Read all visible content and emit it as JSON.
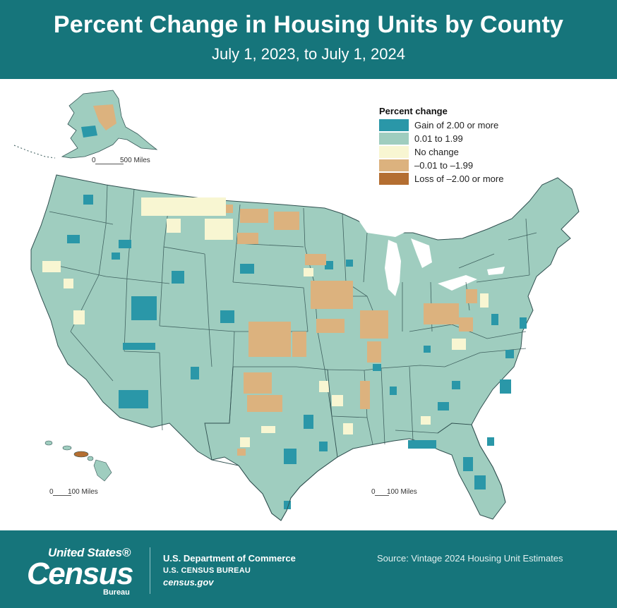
{
  "header": {
    "title": "Percent Change in Housing Units by County",
    "subtitle": "July 1, 2023, to July 1, 2024"
  },
  "legend": {
    "title": "Percent change",
    "items": [
      {
        "label": "Gain of 2.00 or more",
        "color": "#2a97a8"
      },
      {
        "label": "0.01 to 1.99",
        "color": "#9fcdbf"
      },
      {
        "label": "No change",
        "color": "#f8f6d2"
      },
      {
        "label": "–0.01 to –1.99",
        "color": "#dcb27e"
      },
      {
        "label": "Loss of –2.00 or more",
        "color": "#b46e31"
      }
    ]
  },
  "scales": {
    "alaska": {
      "zero": "0",
      "label": "500 Miles"
    },
    "hawaii": {
      "zero": "0",
      "label": "100 Miles"
    },
    "conus": {
      "zero": "0",
      "label": "100 Miles"
    }
  },
  "footer": {
    "logo_line1": "United States®",
    "logo_line2": "Census",
    "logo_line3": "Bureau",
    "department": "U.S. Department of Commerce",
    "bureau": "U.S. CENSUS BUREAU",
    "website": "census.gov",
    "source": "Source: Vintage 2024 Housing Unit Estimates"
  },
  "colors": {
    "header_bg": "#16757b",
    "gain": "#2a97a8",
    "small_gain": "#9fcdbf",
    "no_change": "#f8f6d2",
    "small_loss": "#dcb27e",
    "loss": "#b46e31"
  }
}
